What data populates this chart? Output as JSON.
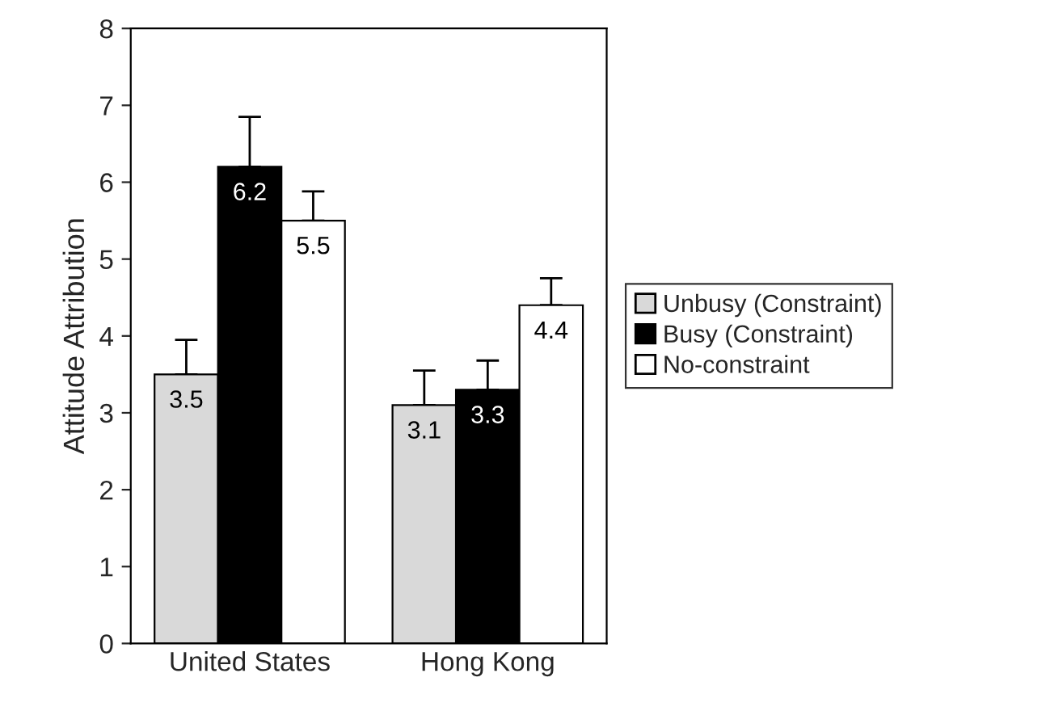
{
  "chart_data": {
    "type": "bar",
    "ylabel": "Attitude Attribution",
    "categories": [
      "United States",
      "Hong Kong"
    ],
    "series": [
      {
        "name": "Unbusy (Constraint)",
        "color": "#d9d9d9",
        "values": [
          3.5,
          3.1
        ],
        "errors": [
          [
            3.5,
            3.95
          ],
          [
            3.1,
            3.55
          ]
        ]
      },
      {
        "name": "Busy (Constraint)",
        "color": "#000000",
        "values": [
          6.2,
          3.3
        ],
        "errors": [
          [
            6.2,
            6.85
          ],
          [
            3.3,
            3.68
          ]
        ]
      },
      {
        "name": "No-constraint",
        "color": "#ffffff",
        "values": [
          5.5,
          4.4
        ],
        "errors": [
          [
            5.5,
            5.88
          ],
          [
            4.4,
            4.75
          ]
        ]
      }
    ],
    "data_labels": true,
    "ylim": [
      0,
      8
    ],
    "yticks": [
      0,
      1,
      2,
      3,
      4,
      5,
      6,
      7,
      8
    ],
    "grid": false,
    "legend": "right"
  }
}
